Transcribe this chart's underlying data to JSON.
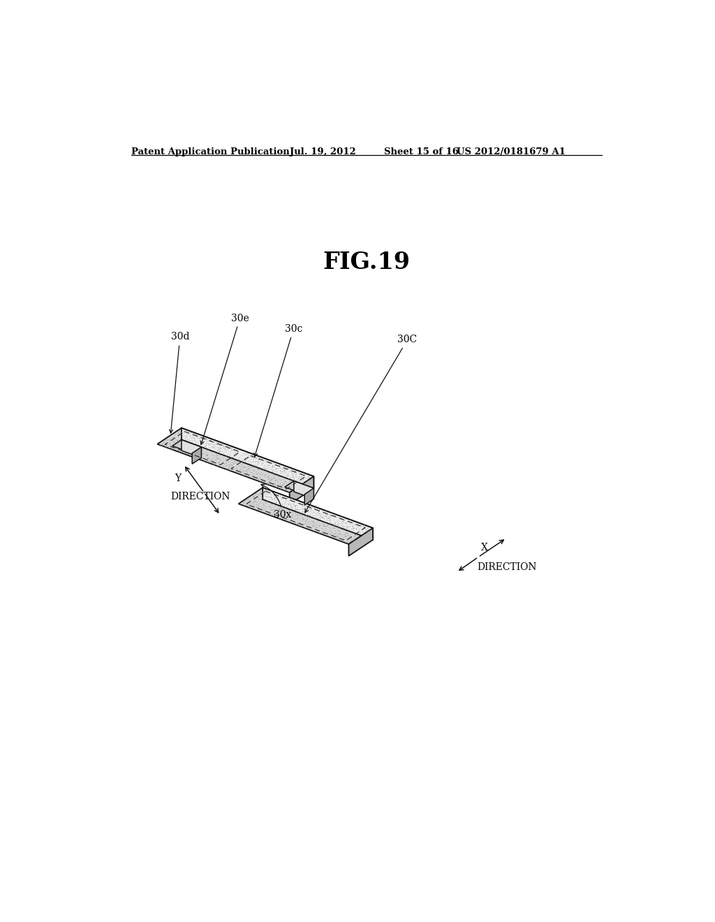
{
  "bg_color": "#ffffff",
  "header_text": "Patent Application Publication",
  "header_date": "Jul. 19, 2012",
  "header_sheet": "Sheet 15 of 16",
  "header_patent": "US 2012/0181679 A1",
  "fig_title": "FIG.19",
  "line_color": "#111111",
  "stipple_color": "#888888",
  "face_color": "#d8d8d8",
  "front_color": "#eeeeee",
  "side_color": "#bbbbbb",
  "connector_face": "#c8c8c8",
  "connector_front": "#e4e4e4",
  "connector_side": "#aaaaaa"
}
